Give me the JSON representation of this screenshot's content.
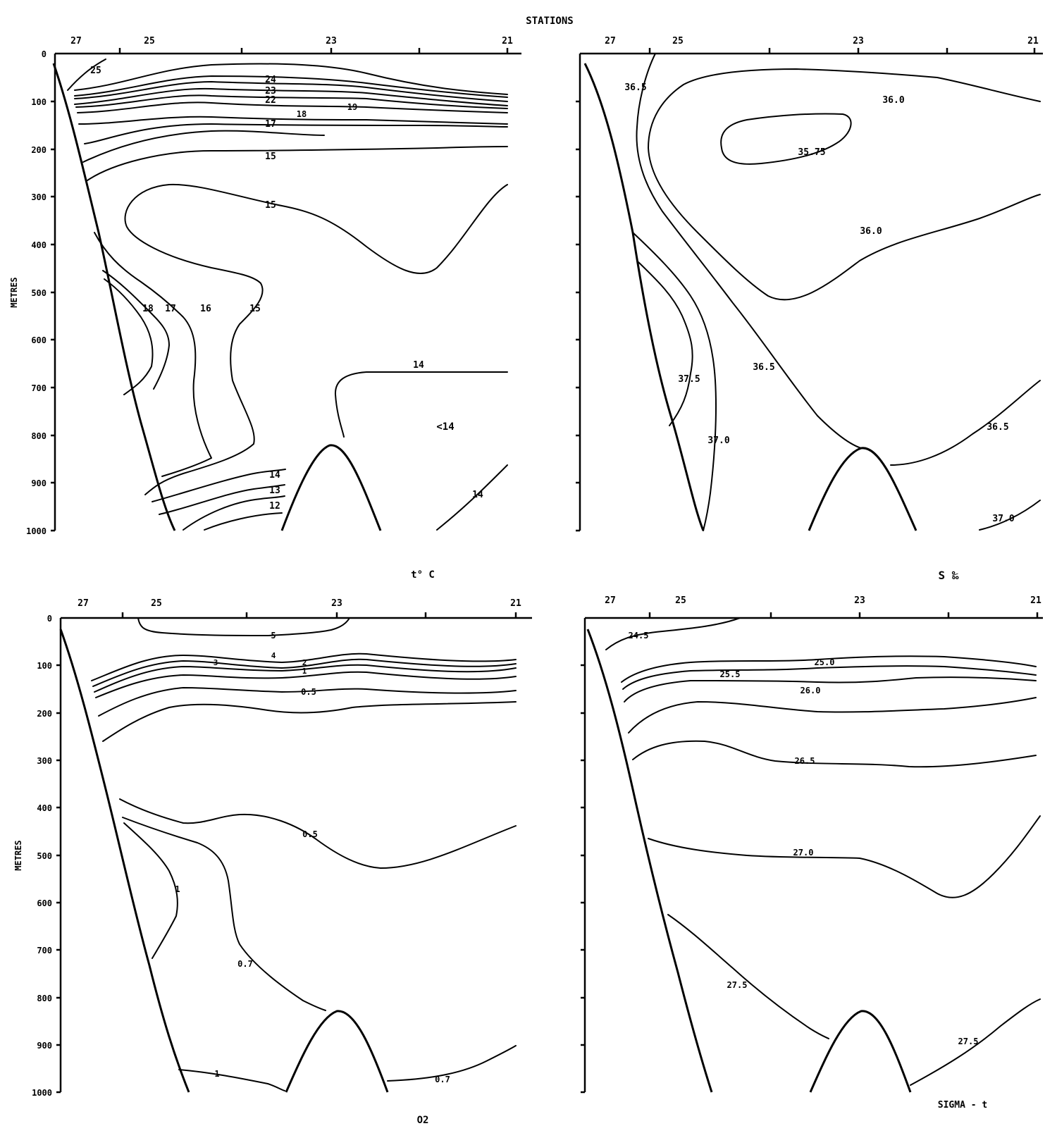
{
  "header": {
    "stations_label": "STATIONS"
  },
  "common": {
    "station_ticks": [
      "27",
      "25",
      "23",
      "21"
    ],
    "depth_ticks": [
      "0",
      "100",
      "200",
      "300",
      "400",
      "500",
      "600",
      "700",
      "800",
      "900",
      "1000"
    ],
    "depth_label": "METRES"
  },
  "chart_data": [
    {
      "type": "contour",
      "title": "t° C",
      "ylabel": "METRES",
      "xlabel": "STATIONS",
      "x_ticks": [
        "27",
        "25",
        "23",
        "21"
      ],
      "ylim": [
        1000,
        0
      ],
      "isoline_labels": [
        "25",
        "24",
        "23",
        "22",
        "19",
        "18",
        "17",
        "15",
        "15",
        "18",
        "17",
        "16",
        "15",
        "14",
        "<14",
        "14",
        "13",
        "12",
        "14"
      ]
    },
    {
      "type": "contour",
      "title": "S ‰",
      "ylabel": "METRES",
      "x_ticks": [
        "27",
        "25",
        "23",
        "21"
      ],
      "ylim": [
        1000,
        0
      ],
      "isoline_labels": [
        "36.5",
        "36.0",
        "35.75",
        "36.0",
        "37.5",
        "36.5",
        "37.0",
        "36.5",
        "37.0"
      ]
    },
    {
      "type": "contour",
      "title": "O2",
      "ylabel": "METRES",
      "x_ticks": [
        "27",
        "25",
        "23",
        "21"
      ],
      "ylim": [
        1000,
        0
      ],
      "isoline_labels": [
        "5",
        "4",
        "3",
        "2",
        "1",
        "0.5",
        "0.5",
        "1",
        "0.7",
        "1",
        "0.7"
      ]
    },
    {
      "type": "contour",
      "title": "SIGMA - t",
      "ylabel": "METRES",
      "x_ticks": [
        "27",
        "25",
        "23",
        "21"
      ],
      "ylim": [
        1000,
        0
      ],
      "isoline_labels": [
        "24.5",
        "25.0",
        "25.5",
        "26.0",
        "26.5",
        "27.0",
        "27.5",
        "27.5"
      ]
    }
  ]
}
